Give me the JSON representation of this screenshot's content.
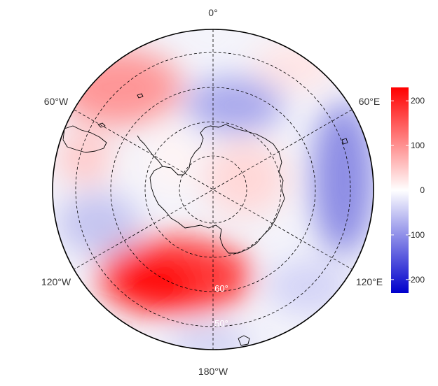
{
  "map": {
    "projection": "south-polar-stereographic",
    "longitude_labels": {
      "top": "0°",
      "upper_left": "60°W",
      "upper_right": "60°E",
      "lower_left": "120°W",
      "lower_right": "120°E",
      "bottom": "180°W"
    },
    "latitude_labels": [
      "60°",
      "50°"
    ],
    "graticule_style": "dashed"
  },
  "colorbar": {
    "ticks": [
      "200",
      "100",
      "0",
      "-100",
      "-200"
    ],
    "range": [
      -230,
      230
    ],
    "colors": {
      "high": "#ff0000",
      "mid": "#ffffff",
      "low": "#0000cc"
    }
  },
  "colors": {
    "positive": "#ff0000",
    "negative": "#0000cc",
    "neutral": "#ffffff",
    "coastline": "#000000",
    "grid": "#000000"
  }
}
